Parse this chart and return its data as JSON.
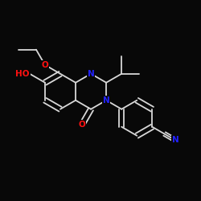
{
  "background_color": "#080808",
  "bond_color": "#d8d8d8",
  "atom_colors": {
    "N": "#2222ff",
    "O": "#ff1111"
  },
  "bond_lw": 1.3,
  "font_size": 7.5,
  "bl": 0.088
}
